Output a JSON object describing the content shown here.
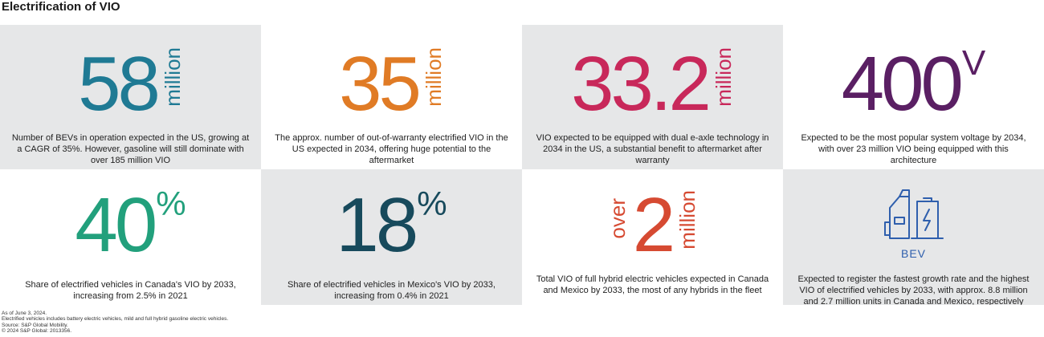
{
  "title": "Electrification of VIO",
  "colors": {
    "teal": "#1f7a94",
    "orange": "#e07b25",
    "crimson": "#c8285a",
    "purple": "#5a1f63",
    "green": "#22a07c",
    "navy": "#174a5c",
    "red": "#d64a32",
    "blue": "#2f5fad",
    "panel_gray": "#e6e7e8"
  },
  "stats": [
    {
      "value": "58",
      "unit": "million",
      "description": "Number of BEVs in operation expected in the US, growing at a CAGR of 35%. However, gasoline will still dominate with over 185 million VIO"
    },
    {
      "value": "35",
      "unit": "million",
      "description": "The approx. number of out-of-warranty electrified VIO in the US expected in 2034, offering huge potential to the aftermarket"
    },
    {
      "value": "33.2",
      "unit": "million",
      "description": "VIO expected to be equipped with dual e-axle technology in 2034 in the US, a substantial benefit to aftermarket after warranty"
    },
    {
      "value": "400",
      "unit": "V",
      "description": "Expected to be the most popular system voltage by 2034, with over 23 million VIO being equipped with this architecture"
    },
    {
      "value": "40",
      "unit": "%",
      "description": "Share of electrified vehicles in Canada's VIO by 2033, increasing from 2.5% in 2021"
    },
    {
      "value": "18",
      "unit": "%",
      "description": "Share of electrified vehicles in Mexico's VIO by 2033, increasing from 0.4% in 2021"
    },
    {
      "prefix": "over",
      "value": "2",
      "unit": "million",
      "description": "Total VIO of full hybrid electric vehicles expected in Canada and Mexico by 2033, the most of any hybrids in the fleet"
    },
    {
      "icon": "ev-charger-battery-icon",
      "icon_label": "BEV",
      "description": "Expected to register the fastest growth rate and the highest VIO of electrified vehicles by 2033, with approx. 8.8 million and 2.7 million units in Canada and Mexico, respectively"
    }
  ],
  "footer": [
    "As of June 3, 2024.",
    "Electrified vehicles includes battery electric vehicles, mild and full hybrid gasoline electric vehicles.",
    "Source: S&P Global Mobility.",
    "© 2024 S&P Global: 2013356."
  ]
}
